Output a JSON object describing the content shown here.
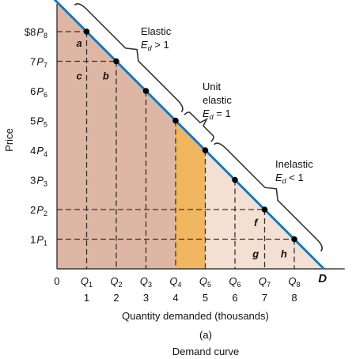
{
  "chart_data": {
    "type": "line",
    "title": "Demand curve",
    "panel_label": "(a)",
    "xlabel": "Quantity demanded (thousands)",
    "ylabel": "Price",
    "xlim": [
      0,
      9
    ],
    "ylim": [
      0,
      9
    ],
    "origin_label": "0",
    "y_ticks": [
      {
        "value": 8,
        "label": "$8",
        "sym": "P",
        "sub": "8"
      },
      {
        "value": 7,
        "label": "7",
        "sym": "P",
        "sub": "7"
      },
      {
        "value": 6,
        "label": "6",
        "sym": "P",
        "sub": "6"
      },
      {
        "value": 5,
        "label": "5",
        "sym": "P",
        "sub": "5"
      },
      {
        "value": 4,
        "label": "4",
        "sym": "P",
        "sub": "4"
      },
      {
        "value": 3,
        "label": "3",
        "sym": "P",
        "sub": "3"
      },
      {
        "value": 2,
        "label": "2",
        "sym": "P",
        "sub": "2"
      },
      {
        "value": 1,
        "label": "1",
        "sym": "P",
        "sub": "1"
      }
    ],
    "x_ticks": [
      {
        "value": 1,
        "sym": "Q",
        "sub": "1",
        "num": "1"
      },
      {
        "value": 2,
        "sym": "Q",
        "sub": "2",
        "num": "2"
      },
      {
        "value": 3,
        "sym": "Q",
        "sub": "3",
        "num": "3"
      },
      {
        "value": 4,
        "sym": "Q",
        "sub": "4",
        "num": "4"
      },
      {
        "value": 5,
        "sym": "Q",
        "sub": "5",
        "num": "5"
      },
      {
        "value": 6,
        "sym": "Q",
        "sub": "6",
        "num": "6"
      },
      {
        "value": 7,
        "sym": "Q",
        "sub": "7",
        "num": "7"
      },
      {
        "value": 8,
        "sym": "Q",
        "sub": "8",
        "num": "8"
      }
    ],
    "series": [
      {
        "name": "D",
        "line": [
          [
            0,
            9
          ],
          [
            9,
            0
          ]
        ],
        "points": [
          [
            1,
            8
          ],
          [
            2,
            7
          ],
          [
            3,
            6
          ],
          [
            4,
            5
          ],
          [
            5,
            4
          ],
          [
            6,
            3
          ],
          [
            7,
            2
          ],
          [
            8,
            1
          ]
        ]
      }
    ],
    "area_labels": [
      {
        "text": "a",
        "x": 0.75,
        "y": 7.6
      },
      {
        "text": "c",
        "x": 0.75,
        "y": 6.5
      },
      {
        "text": "b",
        "x": 1.65,
        "y": 6.5
      },
      {
        "text": "f",
        "x": 6.7,
        "y": 1.55
      },
      {
        "text": "g",
        "x": 6.7,
        "y": 0.5
      },
      {
        "text": "h",
        "x": 7.65,
        "y": 0.5
      }
    ],
    "annotations": [
      {
        "lines": [
          {
            "text": "Elastic"
          },
          {
            "sym": "E",
            "sub": "d",
            "rest": " > 1"
          }
        ]
      },
      {
        "lines": [
          {
            "text": "Unit"
          },
          {
            "text": "elastic"
          },
          {
            "sym": "E",
            "sub": "d",
            "rest": " = 1"
          }
        ]
      },
      {
        "lines": [
          {
            "text": "Inelastic"
          },
          {
            "sym": "E",
            "sub": "d",
            "rest": " < 1"
          }
        ]
      }
    ],
    "colors": {
      "line": "#1f77b4",
      "axis": "#1a1a1a",
      "elastic_fill": "#deb6a4",
      "unit_fill": "#f0b660",
      "inelastic_fill": "#f3e0d3",
      "point": "#000000",
      "dash": "#333333",
      "brace": "#333333"
    }
  }
}
